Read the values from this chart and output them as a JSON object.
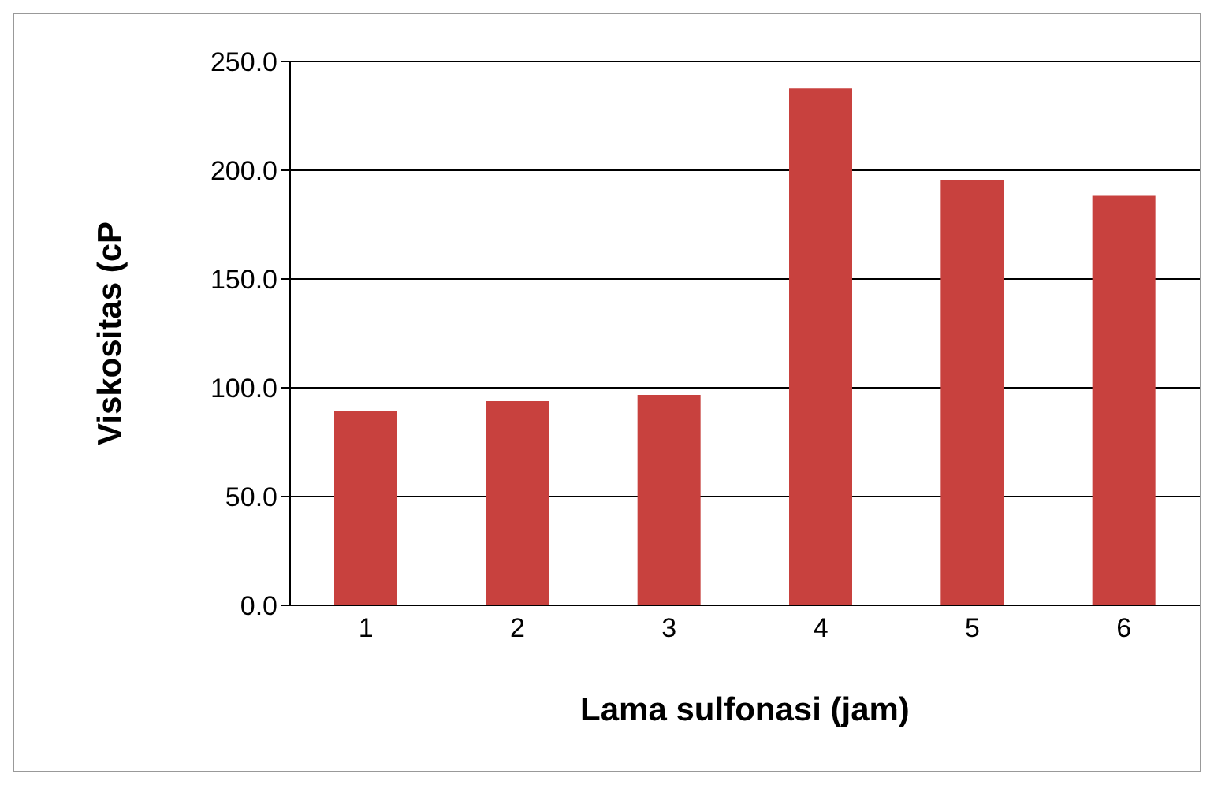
{
  "chart_data": {
    "type": "bar",
    "xlabel": "Lama sulfonasi (jam)",
    "ylabel": "Viskositas (cP",
    "categories": [
      "1",
      "2",
      "3",
      "4",
      "5",
      "6"
    ],
    "values": [
      89.4,
      93.8,
      96.7,
      237.6,
      195.5,
      188.2
    ],
    "color": "#c8413e",
    "ylim": [
      0,
      250
    ],
    "yticks": [
      {
        "value": 0,
        "label": "0.0"
      },
      {
        "value": 50,
        "label": "50.0"
      },
      {
        "value": 100,
        "label": "100.0"
      },
      {
        "value": 150,
        "label": "150.0"
      },
      {
        "value": 200,
        "label": "200.0"
      },
      {
        "value": 250,
        "label": "250.0"
      }
    ],
    "grid": "y"
  }
}
